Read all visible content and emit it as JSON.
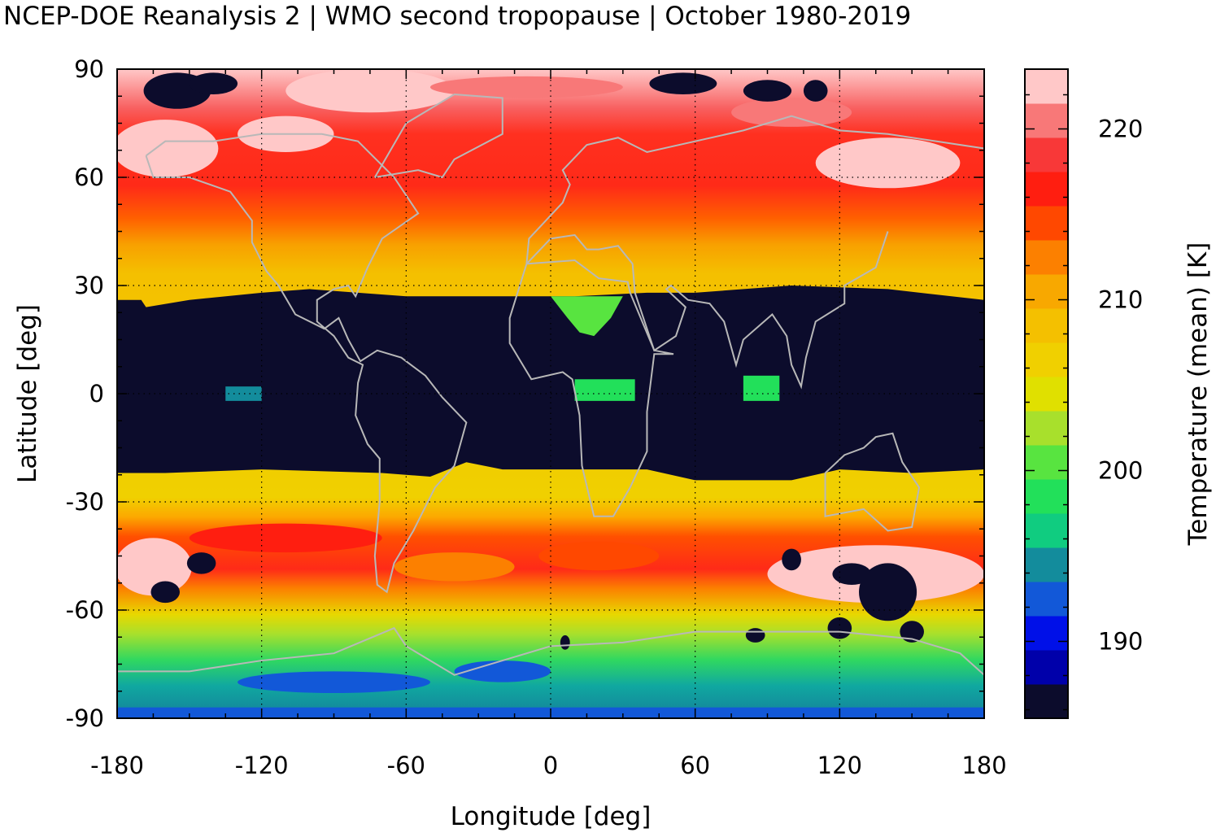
{
  "title": "NCEP-DOE Reanalysis 2 | WMO second tropopause | October 1980-2019",
  "x_axis": {
    "label": "Longitude [deg]",
    "range": [
      -180,
      180
    ],
    "ticks": [
      "-180",
      "-120",
      "-60",
      "0",
      "60",
      "120",
      "180"
    ],
    "tick_values": [
      -180,
      -120,
      -60,
      0,
      60,
      120,
      180
    ]
  },
  "y_axis": {
    "label": "Latitude [deg]",
    "range": [
      -90,
      90
    ],
    "ticks": [
      "90",
      "60",
      "30",
      "0",
      "-30",
      "-60",
      "-90"
    ],
    "tick_values": [
      90,
      60,
      30,
      0,
      -30,
      -60,
      -90
    ]
  },
  "grid": "dotted",
  "colorbar": {
    "label": "Temperature (mean) [K]",
    "range": [
      185.5,
      223.5
    ],
    "ticks": [
      "190",
      "200",
      "210",
      "220"
    ],
    "tick_values": [
      190,
      200,
      210,
      220
    ],
    "colors": [
      "#0c0c2c",
      "#0000aa",
      "#0010e8",
      "#1258d8",
      "#138c9c",
      "#10cc80",
      "#22e05a",
      "#58e440",
      "#a8e02c",
      "#e0e000",
      "#f0d000",
      "#f4c000",
      "#f8a800",
      "#fc8000",
      "#ff4800",
      "#ff1e10",
      "#f83838",
      "#f87878",
      "#ffc8c8"
    ]
  },
  "chart_data": {
    "type": "heatmap",
    "variable": "Temperature (mean) [K]",
    "lon_range": [
      -180,
      180
    ],
    "lat_range": [
      -90,
      90
    ],
    "zonal_profile": [
      {
        "lat": 90,
        "value": 222
      },
      {
        "lat": 80,
        "value": 220
      },
      {
        "lat": 70,
        "value": 219
      },
      {
        "lat": 60,
        "value": 218
      },
      {
        "lat": 50,
        "value": 215
      },
      {
        "lat": 40,
        "value": 212
      },
      {
        "lat": 30,
        "value": 210
      },
      {
        "lat": 20,
        "value": 186
      },
      {
        "lat": 0,
        "value": 186
      },
      {
        "lat": -20,
        "value": 186
      },
      {
        "lat": -30,
        "value": 209
      },
      {
        "lat": -40,
        "value": 214
      },
      {
        "lat": -50,
        "value": 219
      },
      {
        "lat": -60,
        "value": 209
      },
      {
        "lat": -70,
        "value": 204
      },
      {
        "lat": -80,
        "value": 199
      },
      {
        "lat": -90,
        "value": 195
      }
    ],
    "tropical_gap": {
      "lat_range": [
        -22,
        27
      ],
      "value": "no second tropopause"
    }
  }
}
